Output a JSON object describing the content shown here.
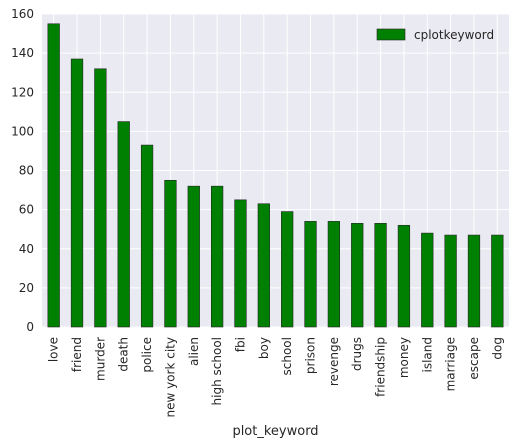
{
  "chart_data": {
    "type": "bar",
    "xlabel": "plot_keyword",
    "ylabel": "",
    "ylim": [
      0,
      160
    ],
    "yticks": [
      0,
      20,
      40,
      60,
      80,
      100,
      120,
      140,
      160
    ],
    "grid": true,
    "legend": {
      "position": "top-right"
    },
    "categories": [
      "love",
      "friend",
      "murder",
      "death",
      "police",
      "new york city",
      "alien",
      "high school",
      "fbi",
      "boy",
      "school",
      "prison",
      "revenge",
      "drugs",
      "friendship",
      "money",
      "island",
      "marriage",
      "escape",
      "dog"
    ],
    "series": [
      {
        "name": "cplotkeyword",
        "color": "#008000",
        "values": [
          155,
          137,
          132,
          105,
          93,
          75,
          72,
          72,
          65,
          63,
          59,
          54,
          54,
          53,
          53,
          52,
          48,
          47,
          47,
          47
        ]
      }
    ],
    "colors": {
      "plot_background": "#eaeaf2",
      "grid": "#ffffff",
      "bar_edge": "#262626"
    }
  }
}
